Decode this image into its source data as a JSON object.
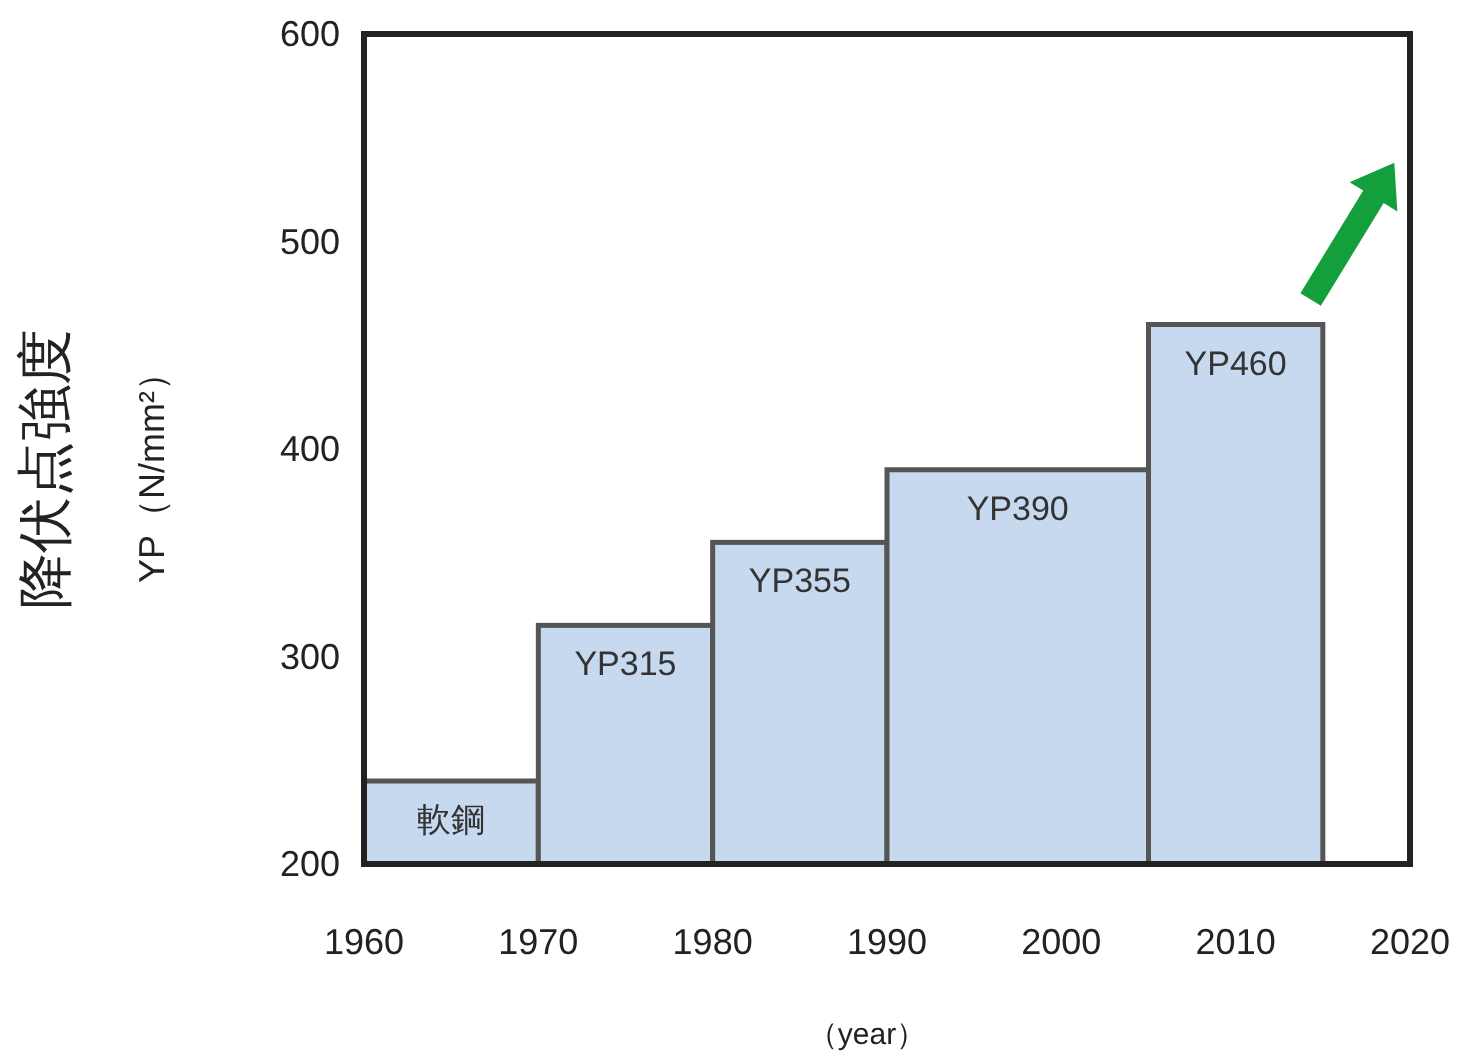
{
  "chart_data": {
    "type": "histogram",
    "bins": [
      1960,
      1970,
      1980,
      1990,
      2005,
      2015
    ],
    "values": [
      240,
      315,
      355,
      390,
      460
    ],
    "value_labels": [
      "軟鋼",
      "YP315",
      "YP355",
      "YP390",
      "YP460"
    ],
    "color": "#c6d9ef",
    "ylabel": "降伏点強度\nYP（N/mm²）",
    "xlabel": "（year）",
    "xlim": [
      1960,
      2020
    ],
    "xticks": [
      1960,
      1970,
      1980,
      1990,
      2000,
      2010,
      2020
    ],
    "ylim": [
      200,
      600
    ],
    "yticks": [
      200,
      300,
      400,
      500,
      600
    ],
    "grid": false
  }
}
